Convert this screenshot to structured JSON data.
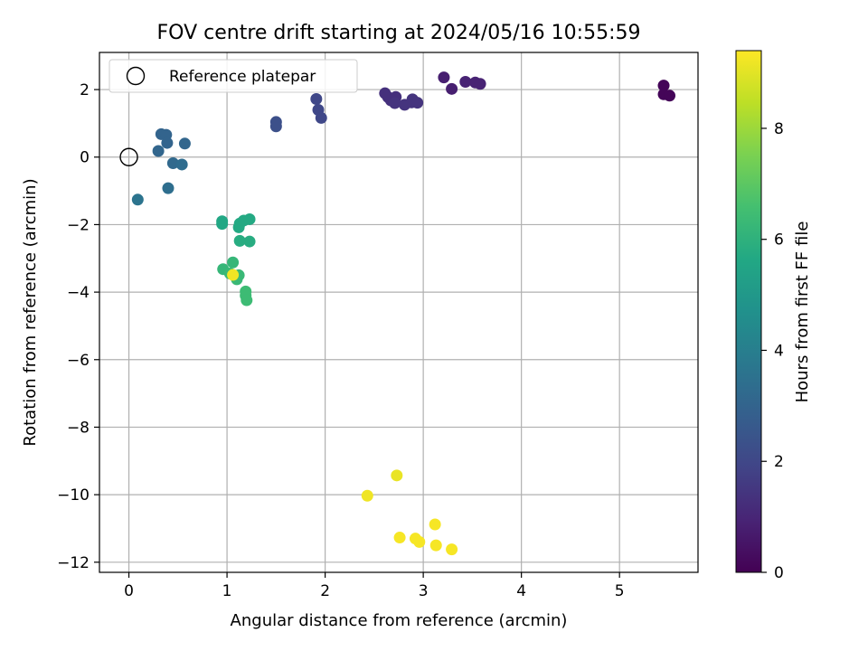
{
  "chart_data": {
    "type": "scatter",
    "title": "FOV centre drift starting at 2024/05/16 10:55:59",
    "xlabel": "Angular distance from reference (arcmin)",
    "ylabel": "Rotation from reference (arcmin)",
    "xlim": [
      -0.3,
      5.8
    ],
    "ylim": [
      -12.3,
      3.1
    ],
    "xticks": [
      0,
      1,
      2,
      3,
      4,
      5
    ],
    "yticks": [
      -12,
      -10,
      -8,
      -6,
      -4,
      -2,
      0,
      2
    ],
    "grid": true,
    "legend": {
      "placement": "top-left",
      "entries": [
        "Reference platepar"
      ]
    },
    "reference_point": {
      "x": 0,
      "y": 0,
      "label": "Reference platepar"
    },
    "colorbar": {
      "label": "Hours from first FF file",
      "colormap": "viridis",
      "range": [
        0,
        9.4
      ],
      "ticks": [
        0,
        2,
        4,
        6,
        8
      ]
    },
    "points": [
      {
        "x": 5.45,
        "y": 2.12,
        "c": 0.1
      },
      {
        "x": 5.45,
        "y": 1.86,
        "c": 0.1
      },
      {
        "x": 5.51,
        "y": 1.82,
        "c": 0.1
      },
      {
        "x": 3.21,
        "y": 2.36,
        "c": 0.8
      },
      {
        "x": 3.29,
        "y": 2.02,
        "c": 0.8
      },
      {
        "x": 3.43,
        "y": 2.23,
        "c": 0.9
      },
      {
        "x": 3.53,
        "y": 2.21,
        "c": 0.9
      },
      {
        "x": 3.58,
        "y": 2.17,
        "c": 0.9
      },
      {
        "x": 2.61,
        "y": 1.89,
        "c": 1.3
      },
      {
        "x": 2.64,
        "y": 1.78,
        "c": 1.3
      },
      {
        "x": 2.67,
        "y": 1.68,
        "c": 1.3
      },
      {
        "x": 2.72,
        "y": 1.78,
        "c": 1.3
      },
      {
        "x": 2.71,
        "y": 1.6,
        "c": 1.4
      },
      {
        "x": 2.81,
        "y": 1.55,
        "c": 1.4
      },
      {
        "x": 2.89,
        "y": 1.71,
        "c": 1.4
      },
      {
        "x": 2.88,
        "y": 1.62,
        "c": 1.4
      },
      {
        "x": 2.94,
        "y": 1.61,
        "c": 1.4
      },
      {
        "x": 1.91,
        "y": 1.72,
        "c": 2.0
      },
      {
        "x": 1.93,
        "y": 1.4,
        "c": 2.0
      },
      {
        "x": 1.96,
        "y": 1.16,
        "c": 2.0
      },
      {
        "x": 1.5,
        "y": 1.04,
        "c": 2.3
      },
      {
        "x": 1.5,
        "y": 0.91,
        "c": 2.3
      },
      {
        "x": 0.33,
        "y": 0.68,
        "c": 3.0
      },
      {
        "x": 0.38,
        "y": 0.66,
        "c": 3.0
      },
      {
        "x": 0.39,
        "y": 0.42,
        "c": 3.0
      },
      {
        "x": 0.3,
        "y": 0.18,
        "c": 3.1
      },
      {
        "x": 0.57,
        "y": 0.4,
        "c": 3.1
      },
      {
        "x": 0.45,
        "y": -0.18,
        "c": 3.2
      },
      {
        "x": 0.54,
        "y": -0.22,
        "c": 3.3
      },
      {
        "x": 0.4,
        "y": -0.92,
        "c": 3.4
      },
      {
        "x": 0.09,
        "y": -1.26,
        "c": 3.6
      },
      {
        "x": 0.95,
        "y": -1.9,
        "c": 5.6
      },
      {
        "x": 0.95,
        "y": -1.98,
        "c": 5.6
      },
      {
        "x": 1.12,
        "y": -2.08,
        "c": 5.7
      },
      {
        "x": 1.13,
        "y": -1.97,
        "c": 5.7
      },
      {
        "x": 1.17,
        "y": -1.88,
        "c": 5.7
      },
      {
        "x": 1.23,
        "y": -1.84,
        "c": 5.7
      },
      {
        "x": 1.13,
        "y": -2.48,
        "c": 5.8
      },
      {
        "x": 1.23,
        "y": -2.5,
        "c": 5.8
      },
      {
        "x": 0.96,
        "y": -3.32,
        "c": 6.2
      },
      {
        "x": 1.06,
        "y": -3.12,
        "c": 6.2
      },
      {
        "x": 1.03,
        "y": -3.45,
        "c": 6.3
      },
      {
        "x": 1.12,
        "y": -3.5,
        "c": 6.3
      },
      {
        "x": 1.1,
        "y": -3.62,
        "c": 6.3
      },
      {
        "x": 1.19,
        "y": -3.98,
        "c": 6.4
      },
      {
        "x": 1.19,
        "y": -4.1,
        "c": 6.4
      },
      {
        "x": 1.2,
        "y": -4.24,
        "c": 6.4
      },
      {
        "x": 1.06,
        "y": -3.49,
        "c": 9.2
      },
      {
        "x": 2.73,
        "y": -9.43,
        "c": 9.1
      },
      {
        "x": 2.43,
        "y": -10.03,
        "c": 9.2
      },
      {
        "x": 3.12,
        "y": -10.88,
        "c": 9.3
      },
      {
        "x": 2.76,
        "y": -11.27,
        "c": 9.3
      },
      {
        "x": 2.92,
        "y": -11.3,
        "c": 9.3
      },
      {
        "x": 2.96,
        "y": -11.4,
        "c": 9.3
      },
      {
        "x": 3.13,
        "y": -11.5,
        "c": 9.3
      },
      {
        "x": 3.29,
        "y": -11.62,
        "c": 9.3
      }
    ]
  }
}
